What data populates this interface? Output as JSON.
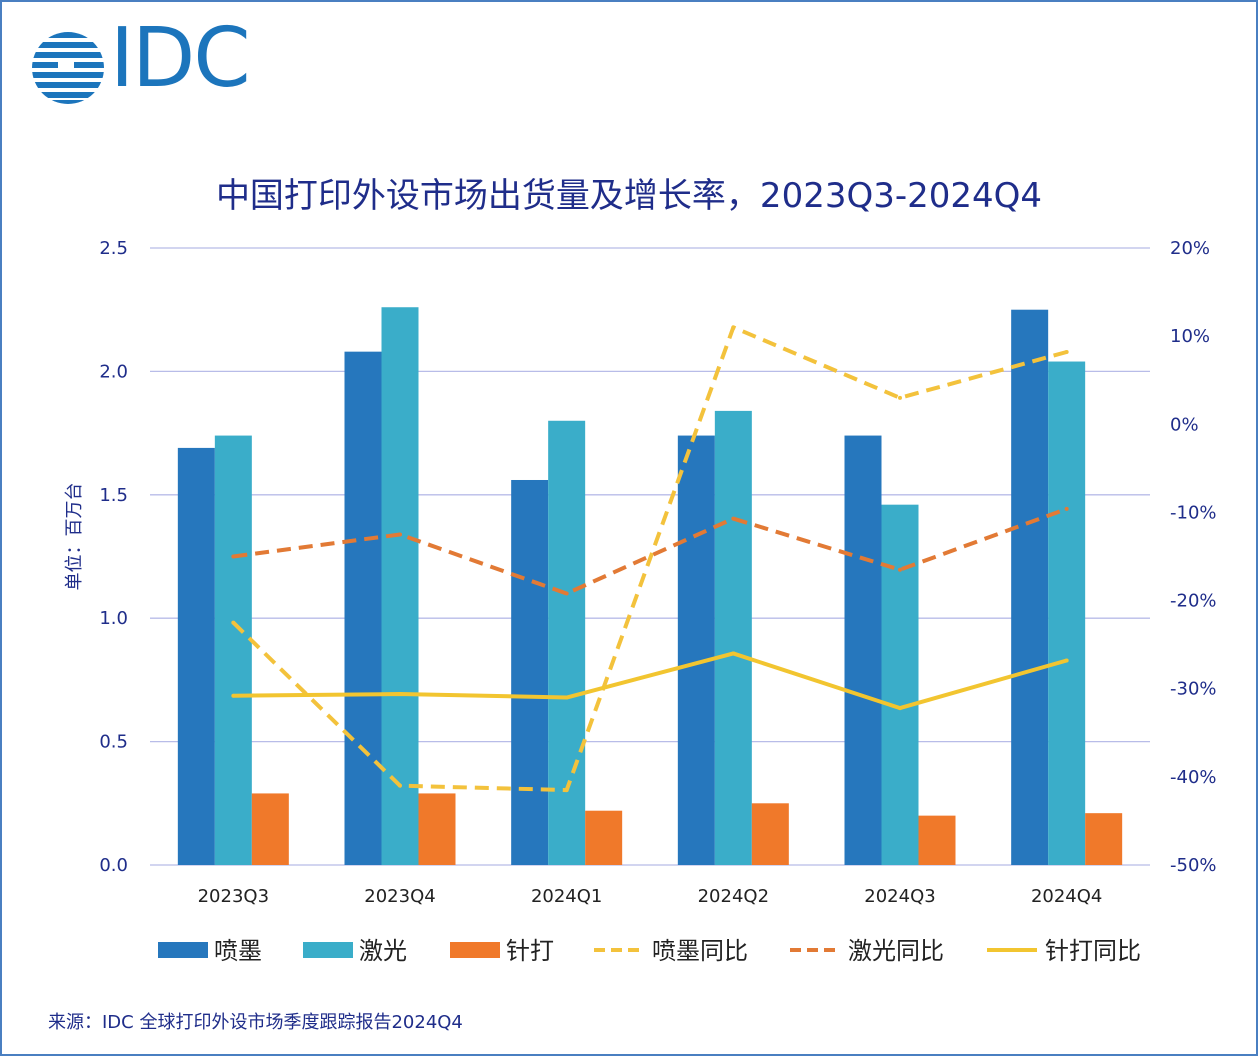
{
  "logo": {
    "text": "IDC"
  },
  "footer": {
    "source": "来源：IDC 全球打印外设市场季度跟踪报告2024Q4"
  },
  "colors": {
    "inkjet": "#2677bd",
    "laser": "#3aadc9",
    "dot_matrix": "#f0792a",
    "inkjet_yoy": "#f3c23c",
    "laser_yoy": "#e27a35",
    "dot_matrix_yoy": "#f2c530",
    "grid": "#b8bce8",
    "text": "#1f2d8a",
    "frame": "#4a7fc1"
  },
  "chart_data": {
    "type": "bar",
    "title": "中国打印外设市场出货量及增长率，2023Q3-2024Q4",
    "ylabel": "单位：百万台",
    "categories": [
      "2023Q3",
      "2023Q4",
      "2024Q1",
      "2024Q2",
      "2024Q3",
      "2024Q4"
    ],
    "ylim": [
      0,
      2.5
    ],
    "yticks": [
      "0.0",
      "0.5",
      "1.0",
      "1.5",
      "2.0",
      "2.5"
    ],
    "y2lim": [
      -50,
      20
    ],
    "y2ticks": [
      "-50%",
      "-40%",
      "-30%",
      "-20%",
      "-10%",
      "0%",
      "10%",
      "20%"
    ],
    "grid": true,
    "legend_position": "bottom",
    "series": [
      {
        "name": "喷墨",
        "kind": "bar",
        "axis": "left",
        "values": [
          1.69,
          2.08,
          1.56,
          1.74,
          1.74,
          2.25
        ]
      },
      {
        "name": "激光",
        "kind": "bar",
        "axis": "left",
        "values": [
          1.74,
          2.26,
          1.8,
          1.84,
          1.46,
          2.04
        ]
      },
      {
        "name": "针打",
        "kind": "bar",
        "axis": "left",
        "values": [
          0.29,
          0.29,
          0.22,
          0.25,
          0.2,
          0.21
        ]
      },
      {
        "name": "喷墨同比",
        "kind": "line",
        "style": "dashed",
        "axis": "right",
        "values": [
          -22.5,
          -41.0,
          -41.5,
          11.0,
          3.0,
          8.2
        ]
      },
      {
        "name": "激光同比",
        "kind": "line",
        "style": "dashed",
        "axis": "right",
        "values": [
          -15.0,
          -12.5,
          -19.2,
          -10.7,
          -16.5,
          -9.6
        ]
      },
      {
        "name": "针打同比",
        "kind": "line",
        "style": "solid",
        "axis": "right",
        "values": [
          -30.8,
          -30.6,
          -31.0,
          -26.0,
          -32.2,
          -26.8
        ]
      }
    ]
  }
}
